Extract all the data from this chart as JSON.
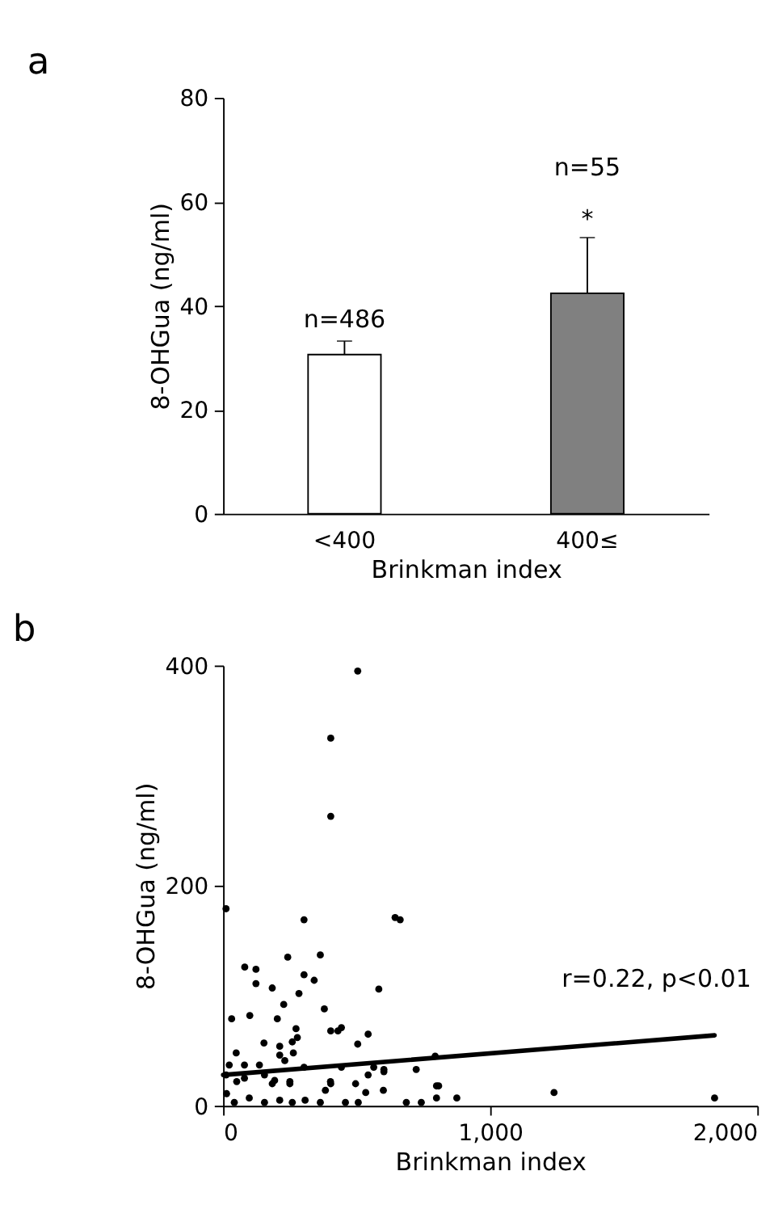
{
  "chart_data": [
    {
      "type": "bar",
      "title": "a",
      "xlabel": "Brinkman index",
      "ylabel": "8-OHGua (ng/ml)",
      "categories": [
        "<400",
        "400≤"
      ],
      "values": [
        30.6,
        42.4
      ],
      "colors": [
        "#ffffff",
        "#808080"
      ],
      "errors": [
        [
          30.6,
          33.2
        ],
        [
          42.4,
          53.1
        ]
      ],
      "ylim": [
        0,
        80
      ],
      "yticks": [
        0,
        20,
        40,
        60,
        80
      ],
      "grid": false,
      "annotations": [
        "n=486",
        "n=55",
        "*"
      ]
    },
    {
      "type": "scatter",
      "title": "b",
      "xlabel": "Brinkman index",
      "ylabel": "8-OHGua (ng/ml)",
      "xlim": [
        0,
        2000
      ],
      "xticks": [
        0,
        {
          "value": 1000,
          "label": "1,000"
        },
        {
          "value": 2000,
          "label": "2,000"
        }
      ],
      "ylim": [
        0,
        400
      ],
      "yticks": [
        0,
        200,
        400
      ],
      "grid": false,
      "series": [
        {
          "type": "scatter",
          "color": "#000000",
          "marker": "circle",
          "x": [
            504,
            403,
            403,
            11,
            303,
            644,
            663,
            242,
            364,
            81,
            123,
            123,
            184,
            303,
            341,
            284,
            583,
            227,
            379,
            32,
            100,
            203,
            273,
            278,
            259,
            153,
            212,
            403,
            430,
            443,
            543,
            504,
            49,
            212,
            231,
            263,
            794,
            23,
            80,
            136,
            303,
            443,
            564,
            602,
            723,
            11,
            80,
            155,
            193,
            250,
            403,
            543,
            602,
            807,
            1239,
            1840,
            13,
            42,
            98,
            155,
            212,
            259,
            307,
            364,
            383,
            458,
            506,
            534,
            600,
            686,
            742,
            799,
            875,
            51,
            184,
            250,
            402,
            496,
            799
          ],
          "values": [
            395,
            334,
            263,
            179,
            169,
            171,
            169,
            135,
            137,
            126,
            124,
            111,
            107,
            119,
            114,
            102,
            106,
            92,
            88,
            79,
            82,
            79,
            70,
            62,
            58,
            57,
            54,
            68,
            68,
            71,
            65,
            56,
            48,
            46,
            41,
            48,
            45,
            37,
            37,
            37,
            35,
            35,
            35,
            33,
            33,
            28,
            25,
            28,
            23,
            20,
            20,
            28,
            31,
            18,
            12,
            7,
            11,
            3,
            7,
            3,
            5,
            3,
            5,
            3,
            14,
            3,
            3,
            12,
            14,
            3,
            3,
            7,
            7,
            22,
            20,
            22,
            22,
            20,
            18
          ]
        },
        {
          "type": "line",
          "color": "#000000",
          "line_style": "solid",
          "marker": "none",
          "x": [
            0,
            1840
          ],
          "values": [
            28,
            64
          ]
        }
      ],
      "annotations": [
        "r=0.22, p<0.01"
      ]
    }
  ]
}
